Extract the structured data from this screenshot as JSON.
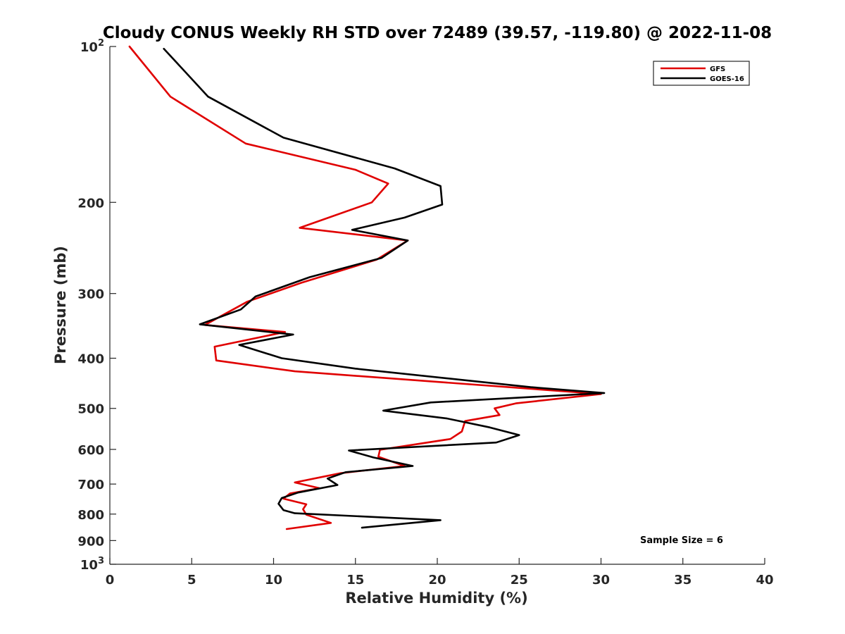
{
  "chart_data": {
    "type": "line",
    "title": "Cloudy CONUS Weekly RH STD over 72489 (39.57, -119.80) @ 2022-11-08",
    "xlabel": "Relative Humidity (%)",
    "ylabel": "Pressure (mb)",
    "xlim": [
      0,
      40
    ],
    "ylim": [
      100,
      1000
    ],
    "y_scale": "log",
    "y_reversed": true,
    "x_ticks": [
      0,
      5,
      10,
      15,
      20,
      25,
      30,
      35,
      40
    ],
    "x_tick_labels": [
      "0",
      "5",
      "10",
      "15",
      "20",
      "25",
      "30",
      "35",
      "40"
    ],
    "y_ticks": [
      100,
      200,
      300,
      400,
      500,
      600,
      700,
      800,
      900,
      1000
    ],
    "y_tick_labels": [
      {
        "base": "10",
        "exp": "2"
      },
      {
        "base": "200",
        "exp": ""
      },
      {
        "base": "300",
        "exp": ""
      },
      {
        "base": "400",
        "exp": ""
      },
      {
        "base": "500",
        "exp": ""
      },
      {
        "base": "600",
        "exp": ""
      },
      {
        "base": "700",
        "exp": ""
      },
      {
        "base": "800",
        "exp": ""
      },
      {
        "base": "900",
        "exp": ""
      },
      {
        "base": "10",
        "exp": "3"
      }
    ],
    "grid": false,
    "legend_position": "top-right",
    "annotation": "Sample Size = 6",
    "series": [
      {
        "name": "GFS",
        "color": "#e00000",
        "points": [
          [
            1.2,
            100
          ],
          [
            3.7,
            125
          ],
          [
            8.3,
            154
          ],
          [
            15.0,
            173
          ],
          [
            17.0,
            184
          ],
          [
            16.0,
            200
          ],
          [
            11.6,
            224
          ],
          [
            18.2,
            237
          ],
          [
            16.3,
            258
          ],
          [
            11.7,
            286
          ],
          [
            8.4,
            311
          ],
          [
            5.8,
            345
          ],
          [
            10.7,
            356
          ],
          [
            6.4,
            380
          ],
          [
            6.5,
            404
          ],
          [
            11.3,
            424
          ],
          [
            30.0,
            469
          ],
          [
            24.8,
            489
          ],
          [
            23.5,
            500
          ],
          [
            23.8,
            515
          ],
          [
            21.7,
            529
          ],
          [
            21.5,
            554
          ],
          [
            20.8,
            573
          ],
          [
            16.5,
            601
          ],
          [
            16.4,
            620
          ],
          [
            18.0,
            646
          ],
          [
            14.1,
            667
          ],
          [
            11.3,
            695
          ],
          [
            12.8,
            713
          ],
          [
            11.0,
            730
          ],
          [
            10.6,
            747
          ],
          [
            12.0,
            766
          ],
          [
            11.8,
            783
          ],
          [
            12.0,
            802
          ],
          [
            13.5,
            832
          ],
          [
            10.8,
            855
          ]
        ]
      },
      {
        "name": "GOES-16",
        "color": "#000000",
        "points": [
          [
            3.3,
            101
          ],
          [
            6.0,
            125
          ],
          [
            10.6,
            150
          ],
          [
            17.4,
            172
          ],
          [
            20.2,
            186
          ],
          [
            20.3,
            202
          ],
          [
            18.0,
            214
          ],
          [
            14.8,
            226
          ],
          [
            18.2,
            237
          ],
          [
            16.6,
            256
          ],
          [
            12.2,
            279
          ],
          [
            8.9,
            304
          ],
          [
            8.0,
            322
          ],
          [
            5.5,
            344
          ],
          [
            11.2,
            360
          ],
          [
            7.9,
            377
          ],
          [
            10.5,
            400
          ],
          [
            15.0,
            419
          ],
          [
            25.7,
            455
          ],
          [
            30.2,
            467
          ],
          [
            19.6,
            487
          ],
          [
            16.7,
            505
          ],
          [
            20.6,
            523
          ],
          [
            23.2,
            544
          ],
          [
            25.0,
            563
          ],
          [
            23.6,
            582
          ],
          [
            14.6,
            603
          ],
          [
            16.1,
            622
          ],
          [
            18.5,
            646
          ],
          [
            14.4,
            664
          ],
          [
            13.3,
            683
          ],
          [
            13.9,
            703
          ],
          [
            11.5,
            727
          ],
          [
            10.5,
            745
          ],
          [
            10.3,
            764
          ],
          [
            10.6,
            786
          ],
          [
            11.3,
            797
          ],
          [
            20.2,
            822
          ],
          [
            15.4,
            850
          ]
        ]
      }
    ]
  }
}
